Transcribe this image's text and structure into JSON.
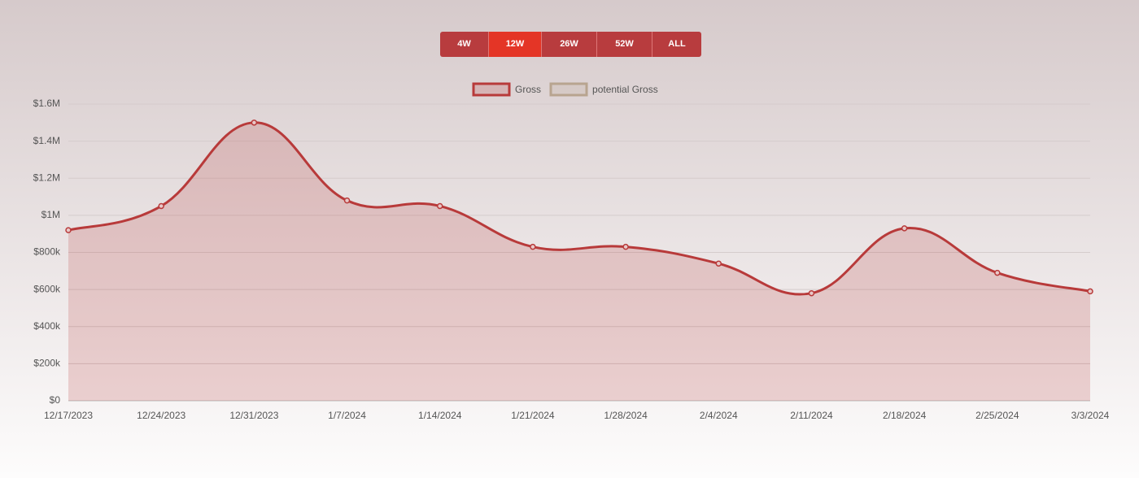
{
  "controls": {
    "ranges": [
      "4W",
      "12W",
      "26W",
      "52W",
      "ALL"
    ],
    "active": 1
  },
  "chart_data": {
    "type": "line",
    "x": [
      "12/17/2023",
      "12/24/2023",
      "12/31/2023",
      "1/7/2024",
      "1/14/2024",
      "1/21/2024",
      "1/28/2024",
      "2/4/2024",
      "2/11/2024",
      "2/18/2024",
      "2/25/2024",
      "3/3/2024"
    ],
    "series": [
      {
        "name": "Gross",
        "color": "#b83a3a",
        "values": [
          920000,
          1050000,
          1500000,
          1080000,
          1050000,
          830000,
          830000,
          740000,
          580000,
          930000,
          690000,
          590000
        ]
      },
      {
        "name": "potential Gross",
        "color": "#b8a48f",
        "values": [
          null,
          null,
          null,
          null,
          null,
          null,
          null,
          null,
          null,
          null,
          null,
          null
        ]
      }
    ],
    "ylim": [
      0,
      1600000
    ],
    "yticks": [
      {
        "value": 0,
        "label": "$0"
      },
      {
        "value": 200000,
        "label": "$200k"
      },
      {
        "value": 400000,
        "label": "$400k"
      },
      {
        "value": 600000,
        "label": "$600k"
      },
      {
        "value": 800000,
        "label": "$800k"
      },
      {
        "value": 1000000,
        "label": "$1M"
      },
      {
        "value": 1200000,
        "label": "$1.2M"
      },
      {
        "value": 1400000,
        "label": "$1.4M"
      },
      {
        "value": 1600000,
        "label": "$1.6M"
      }
    ],
    "grid": true,
    "fill": true,
    "legend": "top"
  }
}
